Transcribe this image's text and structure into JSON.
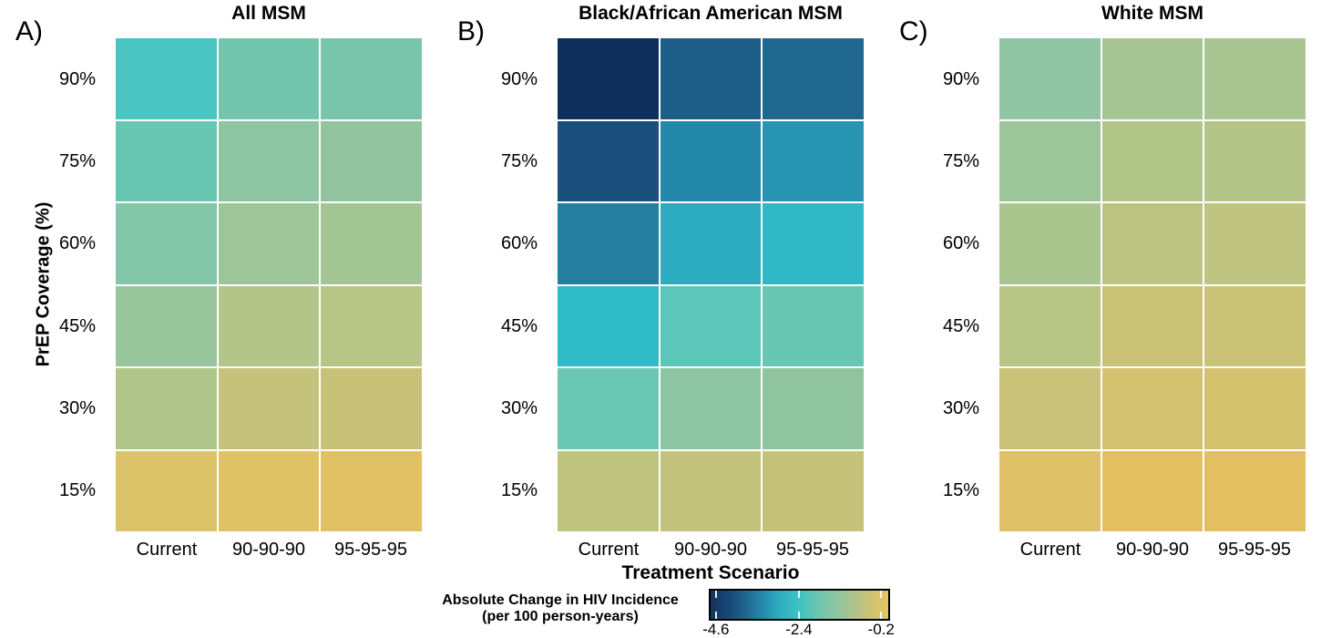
{
  "figure": {
    "x_axis_title": "Treatment Scenario",
    "y_axis_title": "PrEP Coverage (%)"
  },
  "panels": [
    {
      "letter": "A)"
    },
    {
      "letter": "B)"
    },
    {
      "letter": "C)"
    }
  ],
  "legend": {
    "title_line1": "Absolute Change in HIV Incidence",
    "title_line2": "(per 100 person-years)",
    "tick_labels": [
      "-4.6",
      "-2.4",
      "-0.2"
    ],
    "tick_positions": [
      0.03,
      0.497,
      0.96
    ],
    "gradient_stops": [
      "#12325d",
      "#1a4e7b",
      "#22799f",
      "#2ba9bd",
      "#41c2c4",
      "#74c6ad",
      "#9cc598",
      "#c6c27a",
      "#e6c55d"
    ]
  },
  "chart_data": [
    {
      "type": "heatmap",
      "title": "All MSM",
      "xlabel": "Treatment Scenario",
      "ylabel": "PrEP Coverage (%)",
      "x_categories": [
        "Current",
        "90-90-90",
        "95-95-95"
      ],
      "y_categories": [
        "90%",
        "75%",
        "60%",
        "45%",
        "30%",
        "15%"
      ],
      "colorbar_label": "Absolute Change in HIV Incidence (per 100 person-years)",
      "colorbar_range": [
        -4.6,
        -0.2
      ],
      "values": [
        [
          -2.3,
          -1.8,
          -1.75
        ],
        [
          -1.95,
          -1.5,
          -1.45
        ],
        [
          -1.65,
          -1.3,
          -1.25
        ],
        [
          -1.4,
          -1.0,
          -0.95
        ],
        [
          -1.05,
          -0.75,
          -0.7
        ],
        [
          -0.4,
          -0.35,
          -0.35
        ]
      ],
      "colors": [
        [
          "#4ac5c4",
          "#73c6ae",
          "#79c5ab"
        ],
        [
          "#68c7b2",
          "#8dc5a3",
          "#92c4a0"
        ],
        [
          "#82c5a8",
          "#9ec597",
          "#a3c594"
        ],
        [
          "#97c59c",
          "#b3c589",
          "#b7c586"
        ],
        [
          "#b0c58a",
          "#c5c27b",
          "#c8c279"
        ],
        [
          "#dcc268",
          "#dfc166",
          "#e0c164"
        ]
      ]
    },
    {
      "type": "heatmap",
      "title": "Black/African American MSM",
      "xlabel": "Treatment Scenario",
      "ylabel": "PrEP Coverage (%)",
      "x_categories": [
        "Current",
        "90-90-90",
        "95-95-95"
      ],
      "y_categories": [
        "90%",
        "75%",
        "60%",
        "45%",
        "30%",
        "15%"
      ],
      "colorbar_label": "Absolute Change in HIV Incidence (per 100 person-years)",
      "colorbar_range": [
        -4.6,
        -0.2
      ],
      "values": [
        [
          -4.6,
          -3.9,
          -3.7
        ],
        [
          -4.05,
          -3.3,
          -3.1
        ],
        [
          -3.45,
          -2.85,
          -2.65
        ],
        [
          -2.6,
          -2.05,
          -1.9
        ],
        [
          -1.9,
          -1.5,
          -1.45
        ],
        [
          -0.8,
          -0.75,
          -0.72
        ]
      ],
      "colors": [
        [
          "#0e2f5c",
          "#1c5e88",
          "#20688f"
        ],
        [
          "#1a4f7c",
          "#2388a9",
          "#2795b1"
        ],
        [
          "#237e9f",
          "#2bacbf",
          "#2fb8c5"
        ],
        [
          "#2fbcc6",
          "#5cc6b9",
          "#68c7b3"
        ],
        [
          "#6ac7b2",
          "#8dc4a2",
          "#90c4a0"
        ],
        [
          "#bfc47f",
          "#c4c37b",
          "#c5c37a"
        ]
      ]
    },
    {
      "type": "heatmap",
      "title": "White MSM",
      "xlabel": "Treatment Scenario",
      "ylabel": "PrEP Coverage (%)",
      "x_categories": [
        "Current",
        "90-90-90",
        "95-95-95"
      ],
      "y_categories": [
        "90%",
        "75%",
        "60%",
        "45%",
        "30%",
        "15%"
      ],
      "colorbar_label": "Absolute Change in HIV Incidence (per 100 person-years)",
      "colorbar_range": [
        -4.6,
        -0.2
      ],
      "values": [
        [
          -1.45,
          -1.2,
          -1.15
        ],
        [
          -1.3,
          -1.0,
          -0.98
        ],
        [
          -1.1,
          -0.85,
          -0.83
        ],
        [
          -0.93,
          -0.68,
          -0.67
        ],
        [
          -0.68,
          -0.55,
          -0.54
        ],
        [
          -0.35,
          -0.3,
          -0.3
        ]
      ],
      "colors": [
        [
          "#90c4a2",
          "#a5c593",
          "#a8c591"
        ],
        [
          "#9cc59a",
          "#b2c589",
          "#b5c587"
        ],
        [
          "#aac58e",
          "#bdc481",
          "#bfc480"
        ],
        [
          "#b9c584",
          "#c9c277",
          "#cac276"
        ],
        [
          "#c9c278",
          "#d3c16f",
          "#d4c16e"
        ],
        [
          "#dfc167",
          "#e2c062",
          "#e2c061"
        ]
      ]
    }
  ]
}
